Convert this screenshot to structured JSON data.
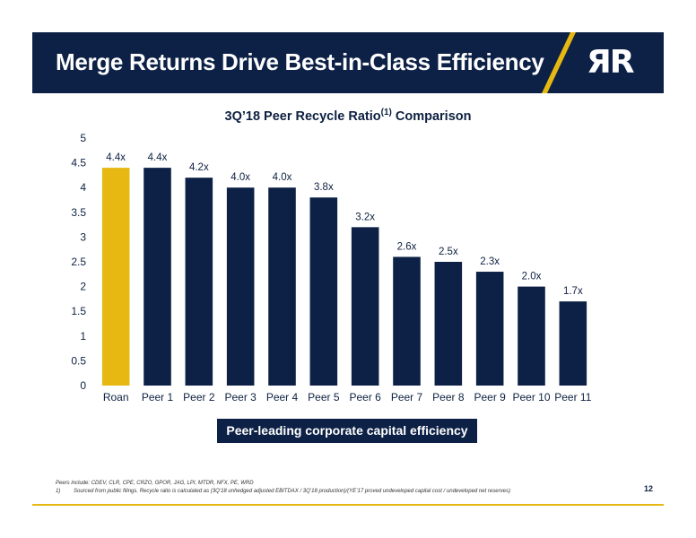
{
  "header": {
    "title": "Merge Returns Drive Best-in-Class Efficiency",
    "logo_text": "ЯR",
    "accent_color": "#e6b811",
    "bg_color": "#0d2146"
  },
  "chart_title": {
    "main": "3Q’18 Peer Recycle Ratio",
    "superscript": "(1)",
    "suffix": " Comparison"
  },
  "chart_data": {
    "type": "bar",
    "title": "3Q’18 Peer Recycle Ratio(1) Comparison",
    "categories": [
      "Roan",
      "Peer 1",
      "Peer 2",
      "Peer 3",
      "Peer 4",
      "Peer 5",
      "Peer 6",
      "Peer 7",
      "Peer 8",
      "Peer 9",
      "Peer 10",
      "Peer 11"
    ],
    "values": [
      4.4,
      4.4,
      4.2,
      4.0,
      4.0,
      3.8,
      3.2,
      2.6,
      2.5,
      2.3,
      2.0,
      1.7
    ],
    "data_labels": [
      "4.4x",
      "4.4x",
      "4.2x",
      "4.0x",
      "4.0x",
      "3.8x",
      "3.2x",
      "2.6x",
      "2.5x",
      "2.3x",
      "2.0x",
      "1.7x"
    ],
    "highlight_index": 0,
    "highlight_color": "#e6b811",
    "bar_color": "#0d2146",
    "ylim": [
      0,
      5
    ],
    "yticks": [
      "0",
      "0.5",
      "1",
      "1.5",
      "2",
      "2.5",
      "3",
      "3.5",
      "4",
      "4.5",
      "5"
    ],
    "ytick_values": [
      0,
      0.5,
      1,
      1.5,
      2,
      2.5,
      3,
      3.5,
      4,
      4.5,
      5
    ],
    "grid": false,
    "legend": "none"
  },
  "callout": "Peer-leading corporate capital efficiency",
  "footnotes": {
    "peers": "Peers include: CDEV, CLR, CPE, CRZO, GPOR, JAG, LPI, MTDR, NFX, PE, WRD",
    "note_number": "1)",
    "note_text": "Sourced from public filings. Recycle ratio is calculated as (3Q’18 unhedged adjusted EBITDAX / 3Q’18 production)/(YE’17 proved undeveloped capital cost / undeveloped net reserves)"
  },
  "page_number": "12"
}
